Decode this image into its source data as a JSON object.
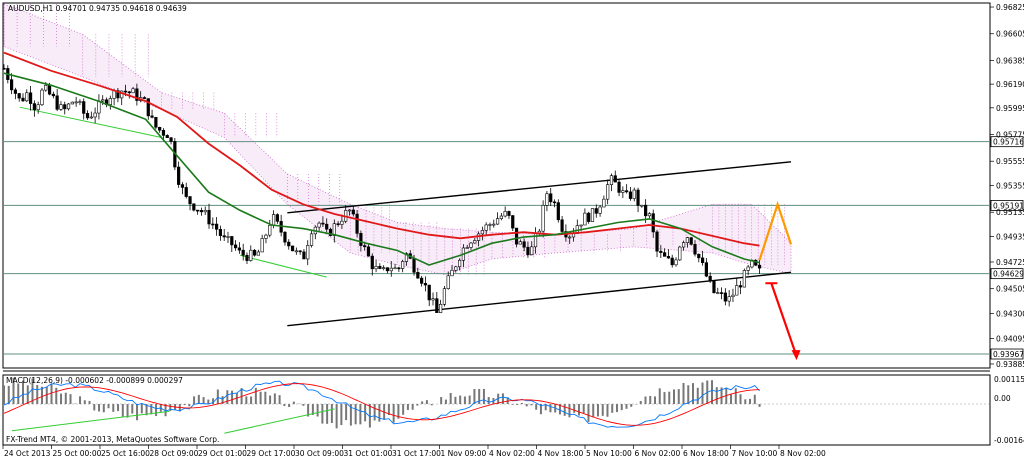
{
  "header": {
    "symbol_line": "AUDUSD,H1  0.94701 0.94735 0.94618 0.94639"
  },
  "macd": {
    "label": "MACD(12,26,9) -0.000602 -0.000899 0.000297",
    "ticks": [
      "0.001153",
      "0.00",
      "-0.001644"
    ],
    "tick_values": [
      0.001153,
      0.0,
      -0.001644
    ]
  },
  "footer": {
    "copyright": "FX-Trend MT4, © 2001-2013, MetaQuotes Software Corp."
  },
  "colors": {
    "candle": "#000000",
    "ma_fast": "#1b7a1b",
    "ma_slow": "#e01818",
    "cloud": "#cc66cc",
    "forecast_up": "#ff9900",
    "forecast_down": "#ff0000",
    "hline": "#5f8f7f",
    "macd_main": "#0077ff",
    "macd_signal": "#ff0000",
    "macd_hist": "#777777",
    "divergence": "#33cc33"
  },
  "chart_data": {
    "type": "candlestick",
    "symbol": "AUDUSD",
    "timeframe": "H1",
    "ohlc_header": {
      "open": 0.94701,
      "high": 0.94735,
      "low": 0.94618,
      "close": 0.94639
    },
    "ylim": [
      0.9386,
      0.9685
    ],
    "y_ticks": [
      0.96825,
      0.96605,
      0.96385,
      0.9619,
      0.95995,
      0.95775,
      0.95555,
      0.95355,
      0.95135,
      0.94935,
      0.94725,
      0.94505,
      0.943,
      0.94095,
      0.93885
    ],
    "y_tick_labels": [
      "0.96825",
      "0.96605",
      "0.96385",
      "0.96190",
      "0.95995",
      "0.95775",
      "0.95555",
      "0.95355",
      "0.95135",
      "0.94935",
      "0.94725",
      "0.94505",
      "0.94300",
      "0.94095",
      "0.93885"
    ],
    "x_labels": [
      "24 Oct 2013",
      "25 Oct 00:00",
      "25 Oct 16:00",
      "28 Oct 09:00",
      "29 Oct 01:00",
      "29 Oct 17:00",
      "30 Oct 09:00",
      "31 Oct 01:00",
      "31 Oct 17:00",
      "1 Nov 09:00",
      "4 Nov 02:00",
      "4 Nov 18:00",
      "5 Nov 10:00",
      "6 Nov 02:00",
      "6 Nov 18:00",
      "7 Nov 10:00",
      "8 Nov 02:00"
    ],
    "x_ticks": [
      0,
      0.0734,
      0.1468,
      0.2202,
      0.2936,
      0.367,
      0.4404,
      0.5138,
      0.5872,
      0.6606,
      0.734,
      0.8074,
      0.8808,
      0.9542,
      1.0276,
      1.101,
      1.1744
    ],
    "levels": [
      {
        "label": "0.95716",
        "value": 0.95716
      },
      {
        "label": "0.95191",
        "value": 0.95191
      },
      {
        "label": "0.94629",
        "value": 0.94629
      },
      {
        "label": "0.93967",
        "value": 0.93967
      }
    ],
    "close_path": [
      [
        0.0,
        0.9632
      ],
      [
        0.01,
        0.9618
      ],
      [
        0.02,
        0.9605
      ],
      [
        0.03,
        0.9612
      ],
      [
        0.04,
        0.96
      ],
      [
        0.05,
        0.9615
      ],
      [
        0.06,
        0.9609
      ],
      [
        0.075,
        0.9596
      ],
      [
        0.09,
        0.9607
      ],
      [
        0.105,
        0.9591
      ],
      [
        0.12,
        0.96
      ],
      [
        0.135,
        0.961
      ],
      [
        0.15,
        0.9614
      ],
      [
        0.165,
        0.9611
      ],
      [
        0.18,
        0.9603
      ],
      [
        0.19,
        0.9585
      ],
      [
        0.2,
        0.958
      ],
      [
        0.21,
        0.9578
      ],
      [
        0.22,
        0.9545
      ],
      [
        0.23,
        0.9525
      ],
      [
        0.24,
        0.952
      ],
      [
        0.25,
        0.9515
      ],
      [
        0.26,
        0.9508
      ],
      [
        0.27,
        0.95
      ],
      [
        0.28,
        0.949
      ],
      [
        0.29,
        0.9487
      ],
      [
        0.3,
        0.9479
      ],
      [
        0.31,
        0.9478
      ],
      [
        0.32,
        0.9476
      ],
      [
        0.33,
        0.949
      ],
      [
        0.34,
        0.951
      ],
      [
        0.35,
        0.95
      ],
      [
        0.36,
        0.949
      ],
      [
        0.37,
        0.948
      ],
      [
        0.38,
        0.9475
      ],
      [
        0.39,
        0.95
      ],
      [
        0.4,
        0.9505
      ],
      [
        0.41,
        0.9495
      ],
      [
        0.42,
        0.9502
      ],
      [
        0.43,
        0.951
      ],
      [
        0.44,
        0.9515
      ],
      [
        0.45,
        0.9495
      ],
      [
        0.46,
        0.948
      ],
      [
        0.47,
        0.9468
      ],
      [
        0.48,
        0.9462
      ],
      [
        0.49,
        0.947
      ],
      [
        0.5,
        0.9465
      ],
      [
        0.51,
        0.948
      ],
      [
        0.52,
        0.947
      ],
      [
        0.53,
        0.946
      ],
      [
        0.54,
        0.9445
      ],
      [
        0.55,
        0.943
      ],
      [
        0.56,
        0.945
      ],
      [
        0.57,
        0.9465
      ],
      [
        0.58,
        0.948
      ],
      [
        0.59,
        0.949
      ],
      [
        0.6,
        0.9495
      ],
      [
        0.61,
        0.95
      ],
      [
        0.62,
        0.9505
      ],
      [
        0.63,
        0.951
      ],
      [
        0.64,
        0.9512
      ],
      [
        0.65,
        0.949
      ],
      [
        0.66,
        0.9485
      ],
      [
        0.67,
        0.9482
      ],
      [
        0.68,
        0.95
      ],
      [
        0.69,
        0.953
      ],
      [
        0.7,
        0.952
      ],
      [
        0.71,
        0.95
      ],
      [
        0.72,
        0.9495
      ],
      [
        0.73,
        0.9505
      ],
      [
        0.74,
        0.951
      ],
      [
        0.75,
        0.9512
      ],
      [
        0.76,
        0.9525
      ],
      [
        0.77,
        0.954
      ],
      [
        0.78,
        0.9535
      ],
      [
        0.79,
        0.9525
      ],
      [
        0.8,
        0.953
      ],
      [
        0.81,
        0.9515
      ],
      [
        0.82,
        0.951
      ],
      [
        0.83,
        0.948
      ],
      [
        0.84,
        0.9475
      ],
      [
        0.85,
        0.947
      ],
      [
        0.86,
        0.949
      ],
      [
        0.87,
        0.9495
      ],
      [
        0.88,
        0.948
      ],
      [
        0.89,
        0.9465
      ],
      [
        0.9,
        0.9448
      ],
      [
        0.91,
        0.9445
      ],
      [
        0.92,
        0.944
      ],
      [
        0.93,
        0.945
      ],
      [
        0.94,
        0.946
      ],
      [
        0.95,
        0.947
      ],
      [
        0.96,
        0.9464
      ]
    ],
    "ma_fast_path": [
      [
        0.0,
        0.9628
      ],
      [
        0.06,
        0.9618
      ],
      [
        0.12,
        0.9605
      ],
      [
        0.18,
        0.959
      ],
      [
        0.22,
        0.956
      ],
      [
        0.26,
        0.953
      ],
      [
        0.3,
        0.9515
      ],
      [
        0.34,
        0.9503
      ],
      [
        0.38,
        0.95
      ],
      [
        0.42,
        0.9495
      ],
      [
        0.46,
        0.9488
      ],
      [
        0.5,
        0.9482
      ],
      [
        0.54,
        0.947
      ],
      [
        0.58,
        0.9478
      ],
      [
        0.62,
        0.9488
      ],
      [
        0.66,
        0.9493
      ],
      [
        0.7,
        0.9495
      ],
      [
        0.74,
        0.95
      ],
      [
        0.78,
        0.9505
      ],
      [
        0.82,
        0.9508
      ],
      [
        0.86,
        0.95
      ],
      [
        0.9,
        0.9485
      ],
      [
        0.94,
        0.9475
      ],
      [
        0.96,
        0.9472
      ]
    ],
    "ma_slow_path": [
      [
        0.0,
        0.9645
      ],
      [
        0.06,
        0.963
      ],
      [
        0.12,
        0.9618
      ],
      [
        0.18,
        0.9605
      ],
      [
        0.22,
        0.9592
      ],
      [
        0.26,
        0.957
      ],
      [
        0.3,
        0.9552
      ],
      [
        0.34,
        0.9532
      ],
      [
        0.38,
        0.952
      ],
      [
        0.42,
        0.9512
      ],
      [
        0.46,
        0.9506
      ],
      [
        0.5,
        0.95
      ],
      [
        0.54,
        0.9495
      ],
      [
        0.58,
        0.9492
      ],
      [
        0.62,
        0.9495
      ],
      [
        0.66,
        0.9497
      ],
      [
        0.7,
        0.9495
      ],
      [
        0.74,
        0.9497
      ],
      [
        0.78,
        0.95
      ],
      [
        0.82,
        0.9503
      ],
      [
        0.86,
        0.95
      ],
      [
        0.9,
        0.9494
      ],
      [
        0.94,
        0.9488
      ],
      [
        0.96,
        0.9486
      ]
    ],
    "channel_upper": [
      [
        0.36,
        0.9513
      ],
      [
        1.0,
        0.9555
      ]
    ],
    "channel_lower": [
      [
        0.36,
        0.942
      ],
      [
        1.0,
        0.9464
      ]
    ],
    "forecast_up": [
      [
        0.96,
        0.9474
      ],
      [
        0.983,
        0.952
      ],
      [
        1.0,
        0.9487
      ]
    ],
    "forecast_down": [
      [
        0.975,
        0.9455
      ],
      [
        1.007,
        0.9395
      ]
    ],
    "cloud": {
      "x0": 0.0,
      "x1": 1.0,
      "top": [
        [
          0.0,
          0.9685
        ],
        [
          0.1,
          0.966
        ],
        [
          0.2,
          0.9612
        ],
        [
          0.28,
          0.9595
        ],
        [
          0.36,
          0.9545
        ],
        [
          0.44,
          0.952
        ],
        [
          0.5,
          0.9505
        ],
        [
          0.56,
          0.95
        ],
        [
          0.62,
          0.9497
        ],
        [
          0.7,
          0.9495
        ],
        [
          0.8,
          0.95
        ],
        [
          0.9,
          0.952
        ],
        [
          0.95,
          0.952
        ],
        [
          1.0,
          0.9488
        ]
      ],
      "bottom": [
        [
          0.0,
          0.965
        ],
        [
          0.1,
          0.9625
        ],
        [
          0.2,
          0.9598
        ],
        [
          0.28,
          0.9575
        ],
        [
          0.36,
          0.952
        ],
        [
          0.44,
          0.948
        ],
        [
          0.5,
          0.947
        ],
        [
          0.56,
          0.9462
        ],
        [
          0.62,
          0.9475
        ],
        [
          0.7,
          0.948
        ],
        [
          0.8,
          0.9485
        ],
        [
          0.9,
          0.948
        ],
        [
          0.95,
          0.947
        ],
        [
          1.0,
          0.9463
        ]
      ]
    }
  }
}
